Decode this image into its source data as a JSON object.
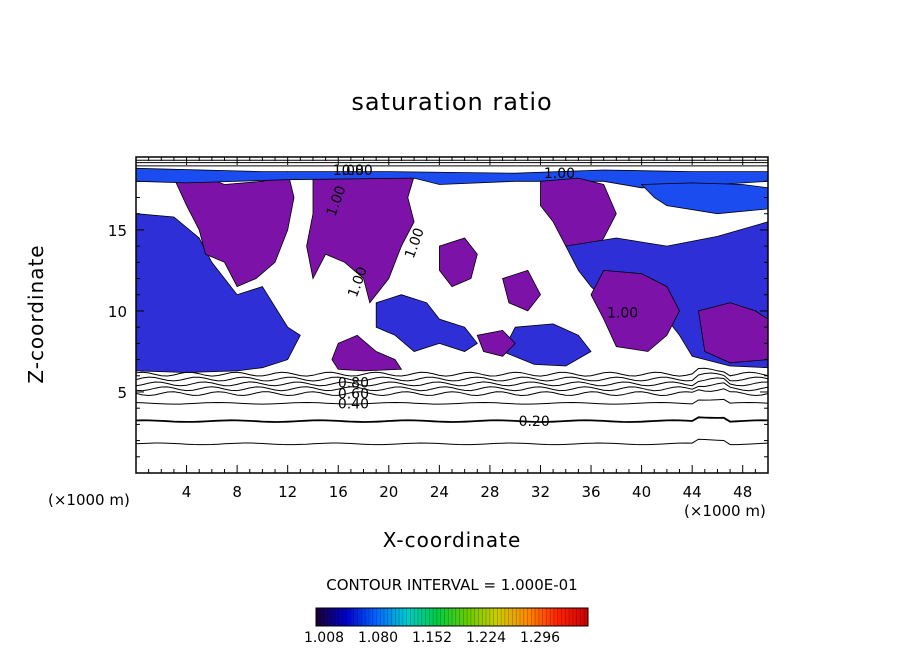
{
  "chart_data": {
    "type": "heatmap",
    "title": "saturation ratio",
    "xlabel": "X-coordinate",
    "ylabel": "Z-coordinate",
    "x_unit_label_left": "(×1000 m)",
    "x_unit_label_right": "(×1000 m)",
    "xlim": [
      0,
      50
    ],
    "ylim": [
      0,
      19.5
    ],
    "x_ticks": [
      4,
      8,
      12,
      16,
      20,
      24,
      28,
      32,
      36,
      40,
      44,
      48
    ],
    "y_ticks": [
      5,
      10,
      15
    ],
    "contour_interval_text": "CONTOUR INTERVAL = 1.000E-01",
    "contour_labels": [
      "0.20",
      "0.40",
      "0.60",
      "0.80",
      "1.00",
      "1.00",
      "1.00",
      "1.00",
      "1.00",
      "1.00",
      "0.80"
    ],
    "colorbar": {
      "tick_labels": [
        "1.008",
        "1.080",
        "1.152",
        "1.224",
        "1.296"
      ],
      "colors": [
        "#1a0030",
        "#0000cc",
        "#0066ff",
        "#00cccc",
        "#00cc44",
        "#66cc00",
        "#cccc00",
        "#ff8800",
        "#ff2200",
        "#cc0000"
      ]
    },
    "fill_colors": {
      "supersaturated_low": "#7d12a8",
      "supersaturated_mid": "#2e2fd6",
      "supersaturated_high": "#1a4cf0"
    },
    "grid": false,
    "legend": "colorbar-bottom"
  }
}
